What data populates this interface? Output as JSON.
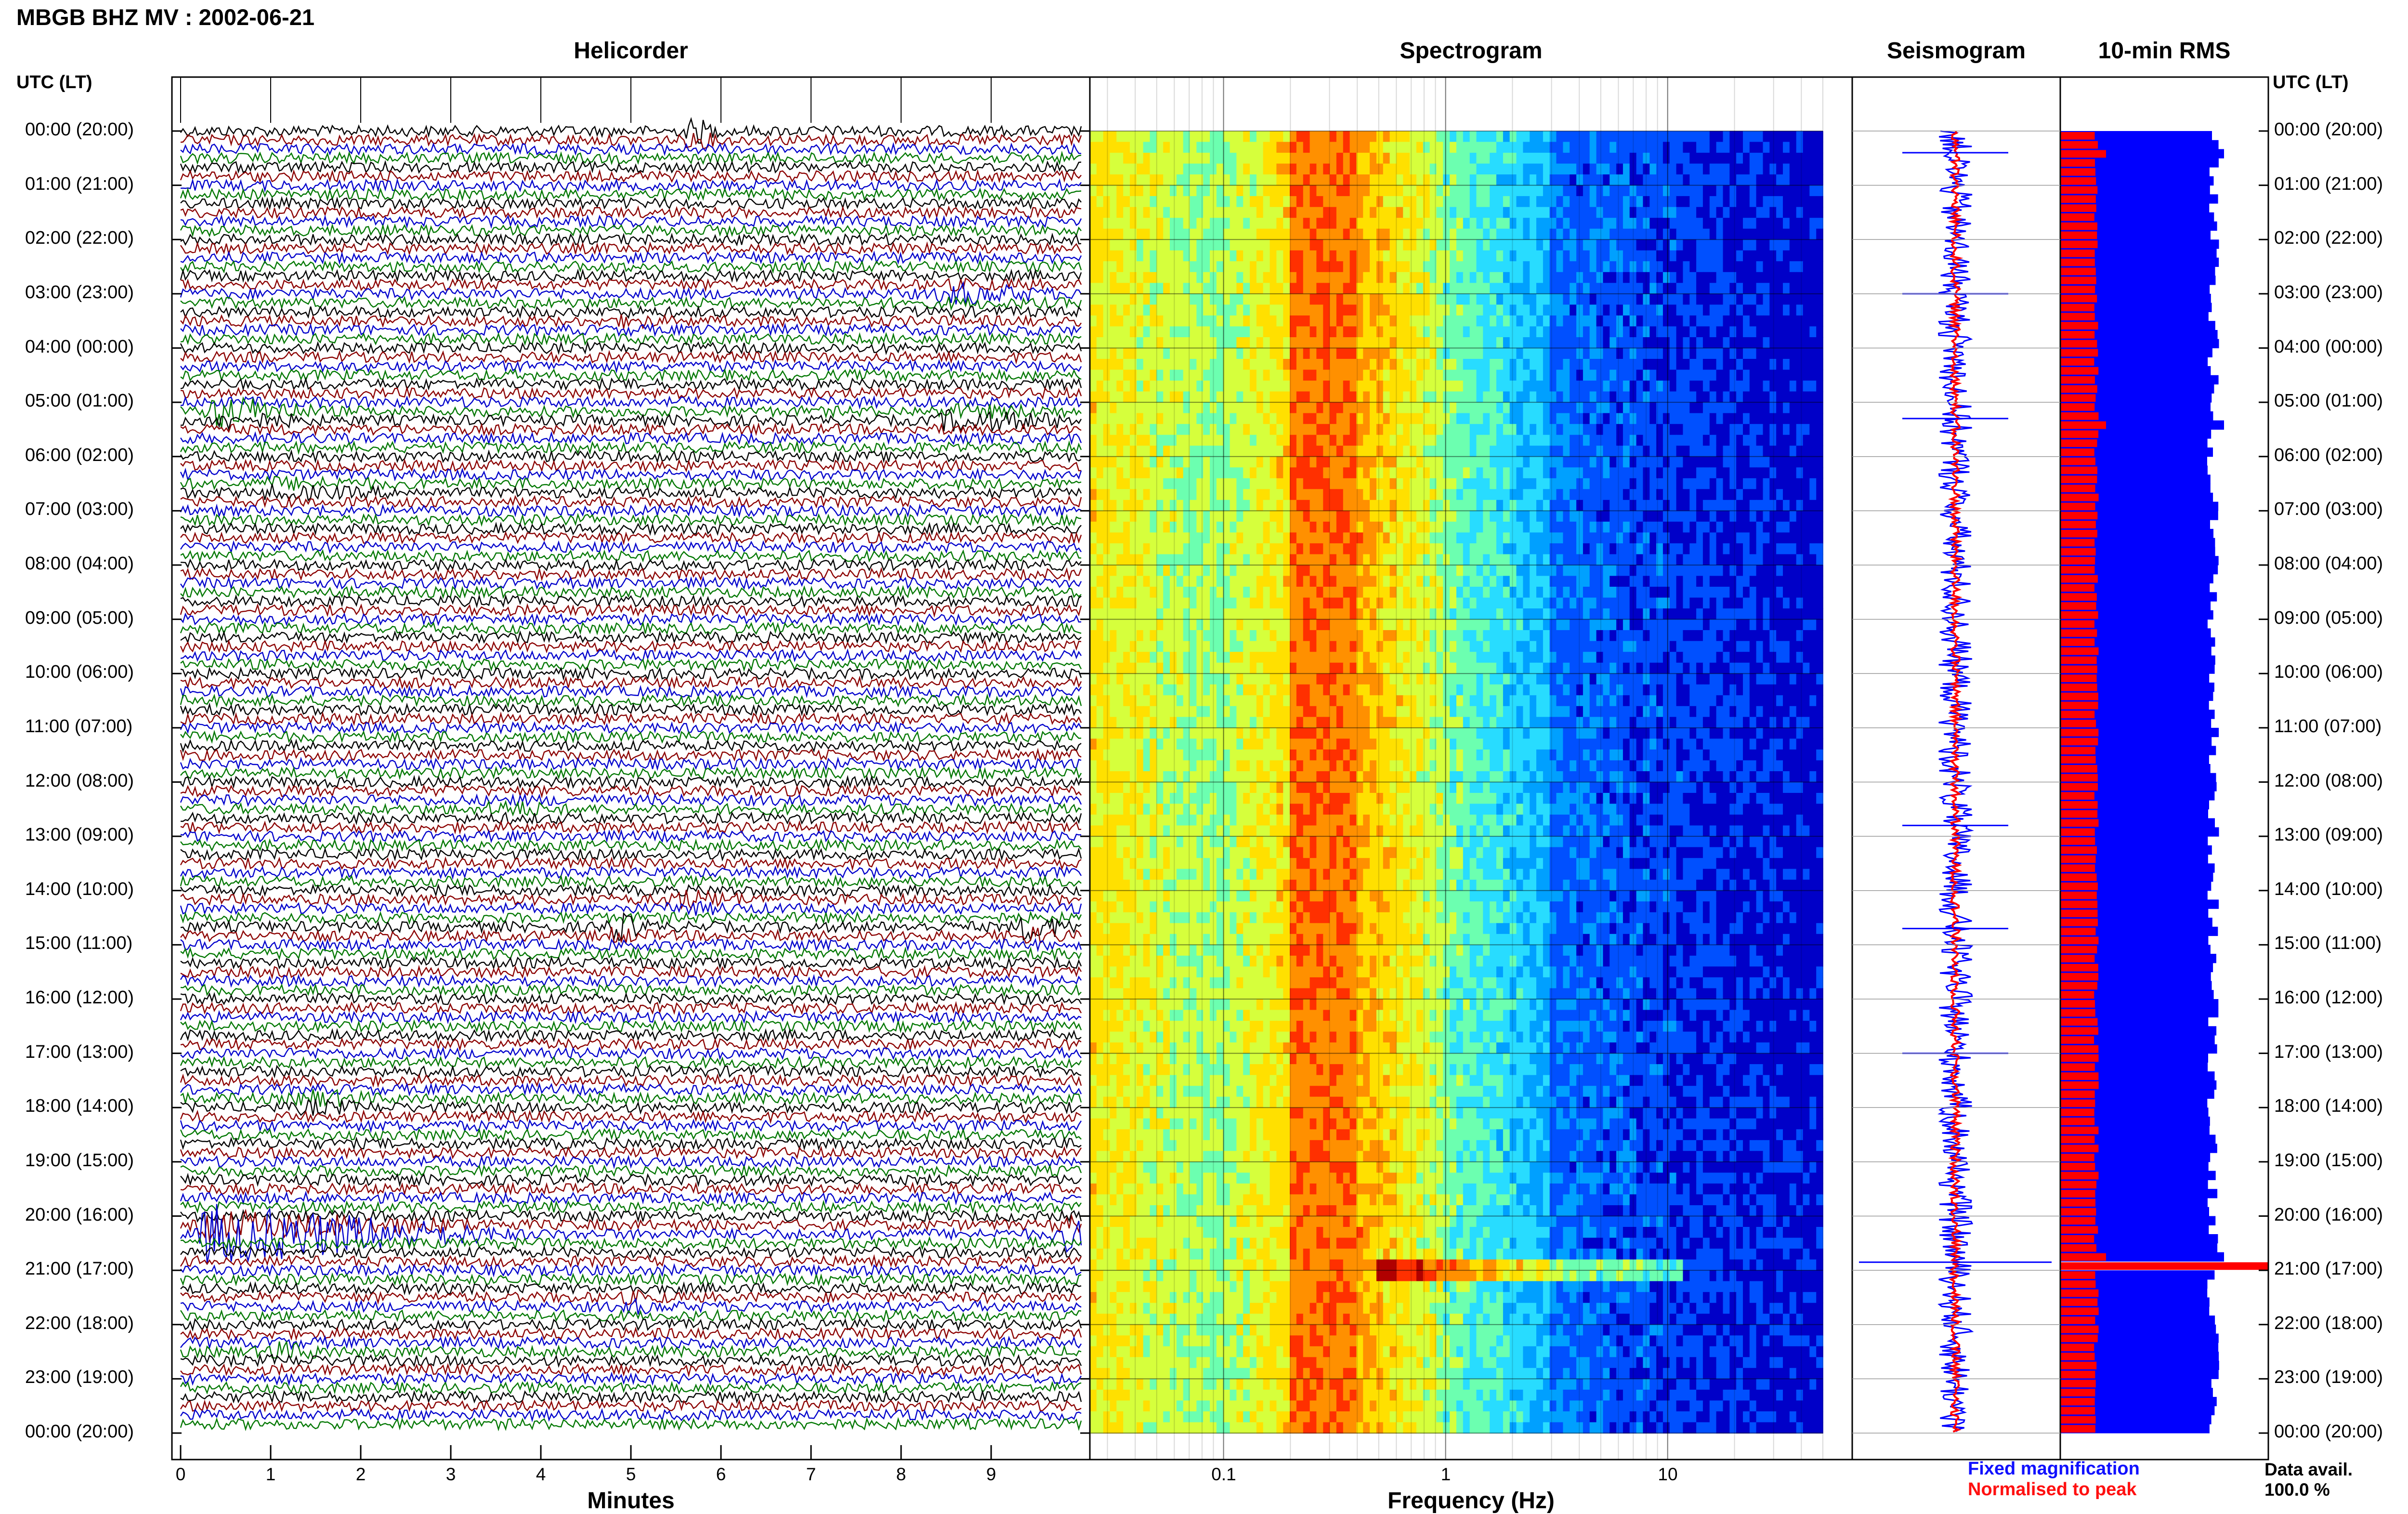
{
  "page": {
    "title": "MBGB BHZ MV : 2002-06-21",
    "axis_corner_left": "UTC (LT)",
    "axis_corner_right": "UTC (LT)"
  },
  "panels": {
    "helicorder": {
      "title": "Helicorder",
      "xlabel": "Minutes"
    },
    "spectrogram": {
      "title": "Spectrogram",
      "xlabel": "Frequency (Hz)"
    },
    "seismogram": {
      "title": "Seismogram"
    },
    "rms": {
      "title": "10-min RMS"
    }
  },
  "legend": {
    "fixed_magnification": "Fixed magnification",
    "normalised_to_peak": "Normalised to peak"
  },
  "data_availability": {
    "label": "Data avail.",
    "value": "100.0 %"
  },
  "colors": {
    "trace_black": "#000000",
    "trace_red": "#8b0000",
    "trace_blue": "#0000cc",
    "trace_green": "#007700",
    "fixed": "#0000ff",
    "peak": "#ff0000"
  },
  "chart_data": {
    "type": "heatmap",
    "station": "MBGB",
    "channel": "BHZ",
    "network": "MV",
    "date": "2002-06-21",
    "time_labels_utc": [
      "00:00",
      "01:00",
      "02:00",
      "03:00",
      "04:00",
      "05:00",
      "06:00",
      "07:00",
      "08:00",
      "09:00",
      "10:00",
      "11:00",
      "12:00",
      "13:00",
      "14:00",
      "15:00",
      "16:00",
      "17:00",
      "18:00",
      "19:00",
      "20:00",
      "21:00",
      "22:00",
      "23:00",
      "00:00"
    ],
    "time_labels_lt": [
      "(20:00)",
      "(21:00)",
      "(22:00)",
      "(23:00)",
      "(00:00)",
      "(01:00)",
      "(02:00)",
      "(03:00)",
      "(04:00)",
      "(05:00)",
      "(06:00)",
      "(07:00)",
      "(08:00)",
      "(09:00)",
      "(10:00)",
      "(11:00)",
      "(12:00)",
      "(13:00)",
      "(14:00)",
      "(15:00)",
      "(16:00)",
      "(17:00)",
      "(18:00)",
      "(19:00)",
      "(20:00)"
    ],
    "helicorder": {
      "minutes_ticks": [
        "0",
        "1",
        "2",
        "3",
        "4",
        "5",
        "6",
        "7",
        "8",
        "9"
      ],
      "xlim": [
        0,
        10
      ],
      "lines_per_hour": 6,
      "trace_color_cycle": [
        "black",
        "red",
        "blue",
        "green"
      ],
      "events": [
        {
          "hour": 0.05,
          "minute": 5.7,
          "amp": 2.5,
          "dur": 0.3
        },
        {
          "hour": 3.0,
          "minute": 8.5,
          "amp": 1.5,
          "dur": 1.3
        },
        {
          "hour": 3.5,
          "minute": 5.0,
          "amp": 1.0,
          "dur": 0.3
        },
        {
          "hour": 5.2,
          "minute": 0.4,
          "amp": 3.0,
          "dur": 1.2
        },
        {
          "hour": 5.3,
          "minute": 8.5,
          "amp": 1.6,
          "dur": 2.0
        },
        {
          "hour": 6.6,
          "minute": 1.0,
          "amp": 1.0,
          "dur": 1.5
        },
        {
          "hour": 12.5,
          "minute": 3.5,
          "amp": 1.0,
          "dur": 0.8
        },
        {
          "hour": 14.2,
          "minute": 5.5,
          "amp": 1.5,
          "dur": 0.9
        },
        {
          "hour": 14.7,
          "minute": 4.8,
          "amp": 2.5,
          "dur": 0.5
        },
        {
          "hour": 14.7,
          "minute": 9.4,
          "amp": 2.5,
          "dur": 0.6
        },
        {
          "hour": 17.9,
          "minute": 1.4,
          "amp": 1.5,
          "dur": 0.9
        },
        {
          "hour": 20.3,
          "minute": 0.3,
          "amp": 6.0,
          "dur": 3.5
        },
        {
          "hour": 20.3,
          "minute": 9.8,
          "amp": 3.0,
          "dur": 0.6
        },
        {
          "hour": 21.6,
          "minute": 5.0,
          "amp": 1.0,
          "dur": 0.5
        },
        {
          "hour": 22.5,
          "minute": 1.0,
          "amp": 1.2,
          "dur": 0.8
        }
      ]
    },
    "spectrogram": {
      "xscale": "log",
      "xlim_hz": [
        0.025,
        50
      ],
      "xtick_labels": [
        "0.1",
        "1",
        "10"
      ],
      "xtick_values_hz": [
        0.1,
        1,
        10
      ],
      "colormap": [
        "#0000c8",
        "#0050ff",
        "#00a0ff",
        "#28dcff",
        "#6cffb0",
        "#d6ff3c",
        "#ffe000",
        "#ff9000",
        "#ff3000",
        "#b00000"
      ],
      "peak_band_hz": [
        0.2,
        0.4
      ],
      "strong_line_hour": 20.85
    },
    "seismogram": {
      "fixed_magnification_color": "blue",
      "normalised_to_peak_color": "red",
      "spikes_hour": [
        0.4,
        3.0,
        5.3,
        12.8,
        14.7,
        17.0,
        20.85
      ]
    },
    "rms_10min": {
      "peak_hour": 20.85,
      "elevated_hours": [
        0.4,
        5.3,
        20.7,
        20.85
      ]
    }
  }
}
